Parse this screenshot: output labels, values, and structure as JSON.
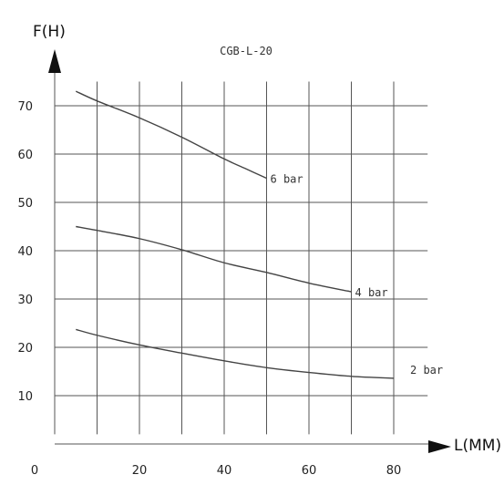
{
  "chart_data": {
    "type": "line",
    "title": "CGB-L-20",
    "xlabel": "L(MM)",
    "ylabel": "F(H)",
    "xlim": [
      0,
      80
    ],
    "ylim": [
      0,
      75
    ],
    "x_ticks": [
      0,
      20,
      40,
      60,
      80
    ],
    "y_ticks": [
      10,
      20,
      30,
      40,
      50,
      60,
      70
    ],
    "grid": true,
    "series": [
      {
        "name": "6 bar",
        "x": [
          5,
          10,
          20,
          30,
          40,
          45,
          50
        ],
        "y": [
          73,
          71,
          67.5,
          63.5,
          59,
          57,
          55
        ]
      },
      {
        "name": "4 bar",
        "x": [
          5,
          10,
          20,
          30,
          40,
          50,
          60,
          70
        ],
        "y": [
          45,
          44.2,
          42.5,
          40.2,
          37.5,
          35.5,
          33.3,
          31.5
        ]
      },
      {
        "name": "2 bar",
        "x": [
          5,
          10,
          20,
          30,
          40,
          50,
          60,
          70,
          80
        ],
        "y": [
          23.7,
          22.5,
          20.5,
          18.8,
          17.2,
          15.8,
          14.8,
          14.0,
          13.6
        ]
      }
    ]
  }
}
